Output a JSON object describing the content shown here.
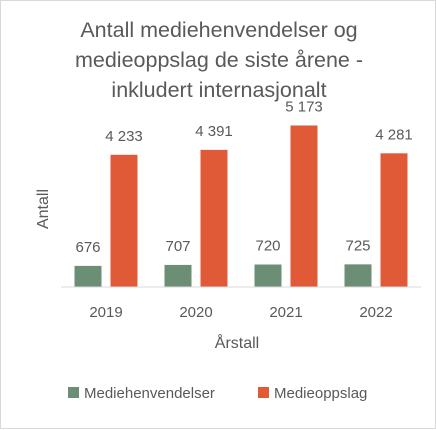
{
  "chart_data": {
    "type": "bar",
    "title_lines": [
      "Antall mediehenvendelser og",
      "medieoppslag de siste årene -",
      "inkludert internasjonalt"
    ],
    "xlabel": "Årstall",
    "ylabel": "Antall",
    "categories": [
      "2019",
      "2020",
      "2021",
      "2022"
    ],
    "ylim": [
      0,
      5700
    ],
    "grid": false,
    "legend_position": "bottom",
    "series": [
      {
        "name": "Mediehenvendelser",
        "color": "#6b8e75",
        "values": [
          676,
          707,
          720,
          725
        ],
        "labels": [
          "676",
          "707",
          "720",
          "725"
        ]
      },
      {
        "name": "Medieoppslag",
        "color": "#e05a38",
        "values": [
          4233,
          4391,
          5173,
          4281
        ],
        "labels": [
          "4 233",
          "4 391",
          "5 173",
          "4 281"
        ]
      }
    ]
  }
}
